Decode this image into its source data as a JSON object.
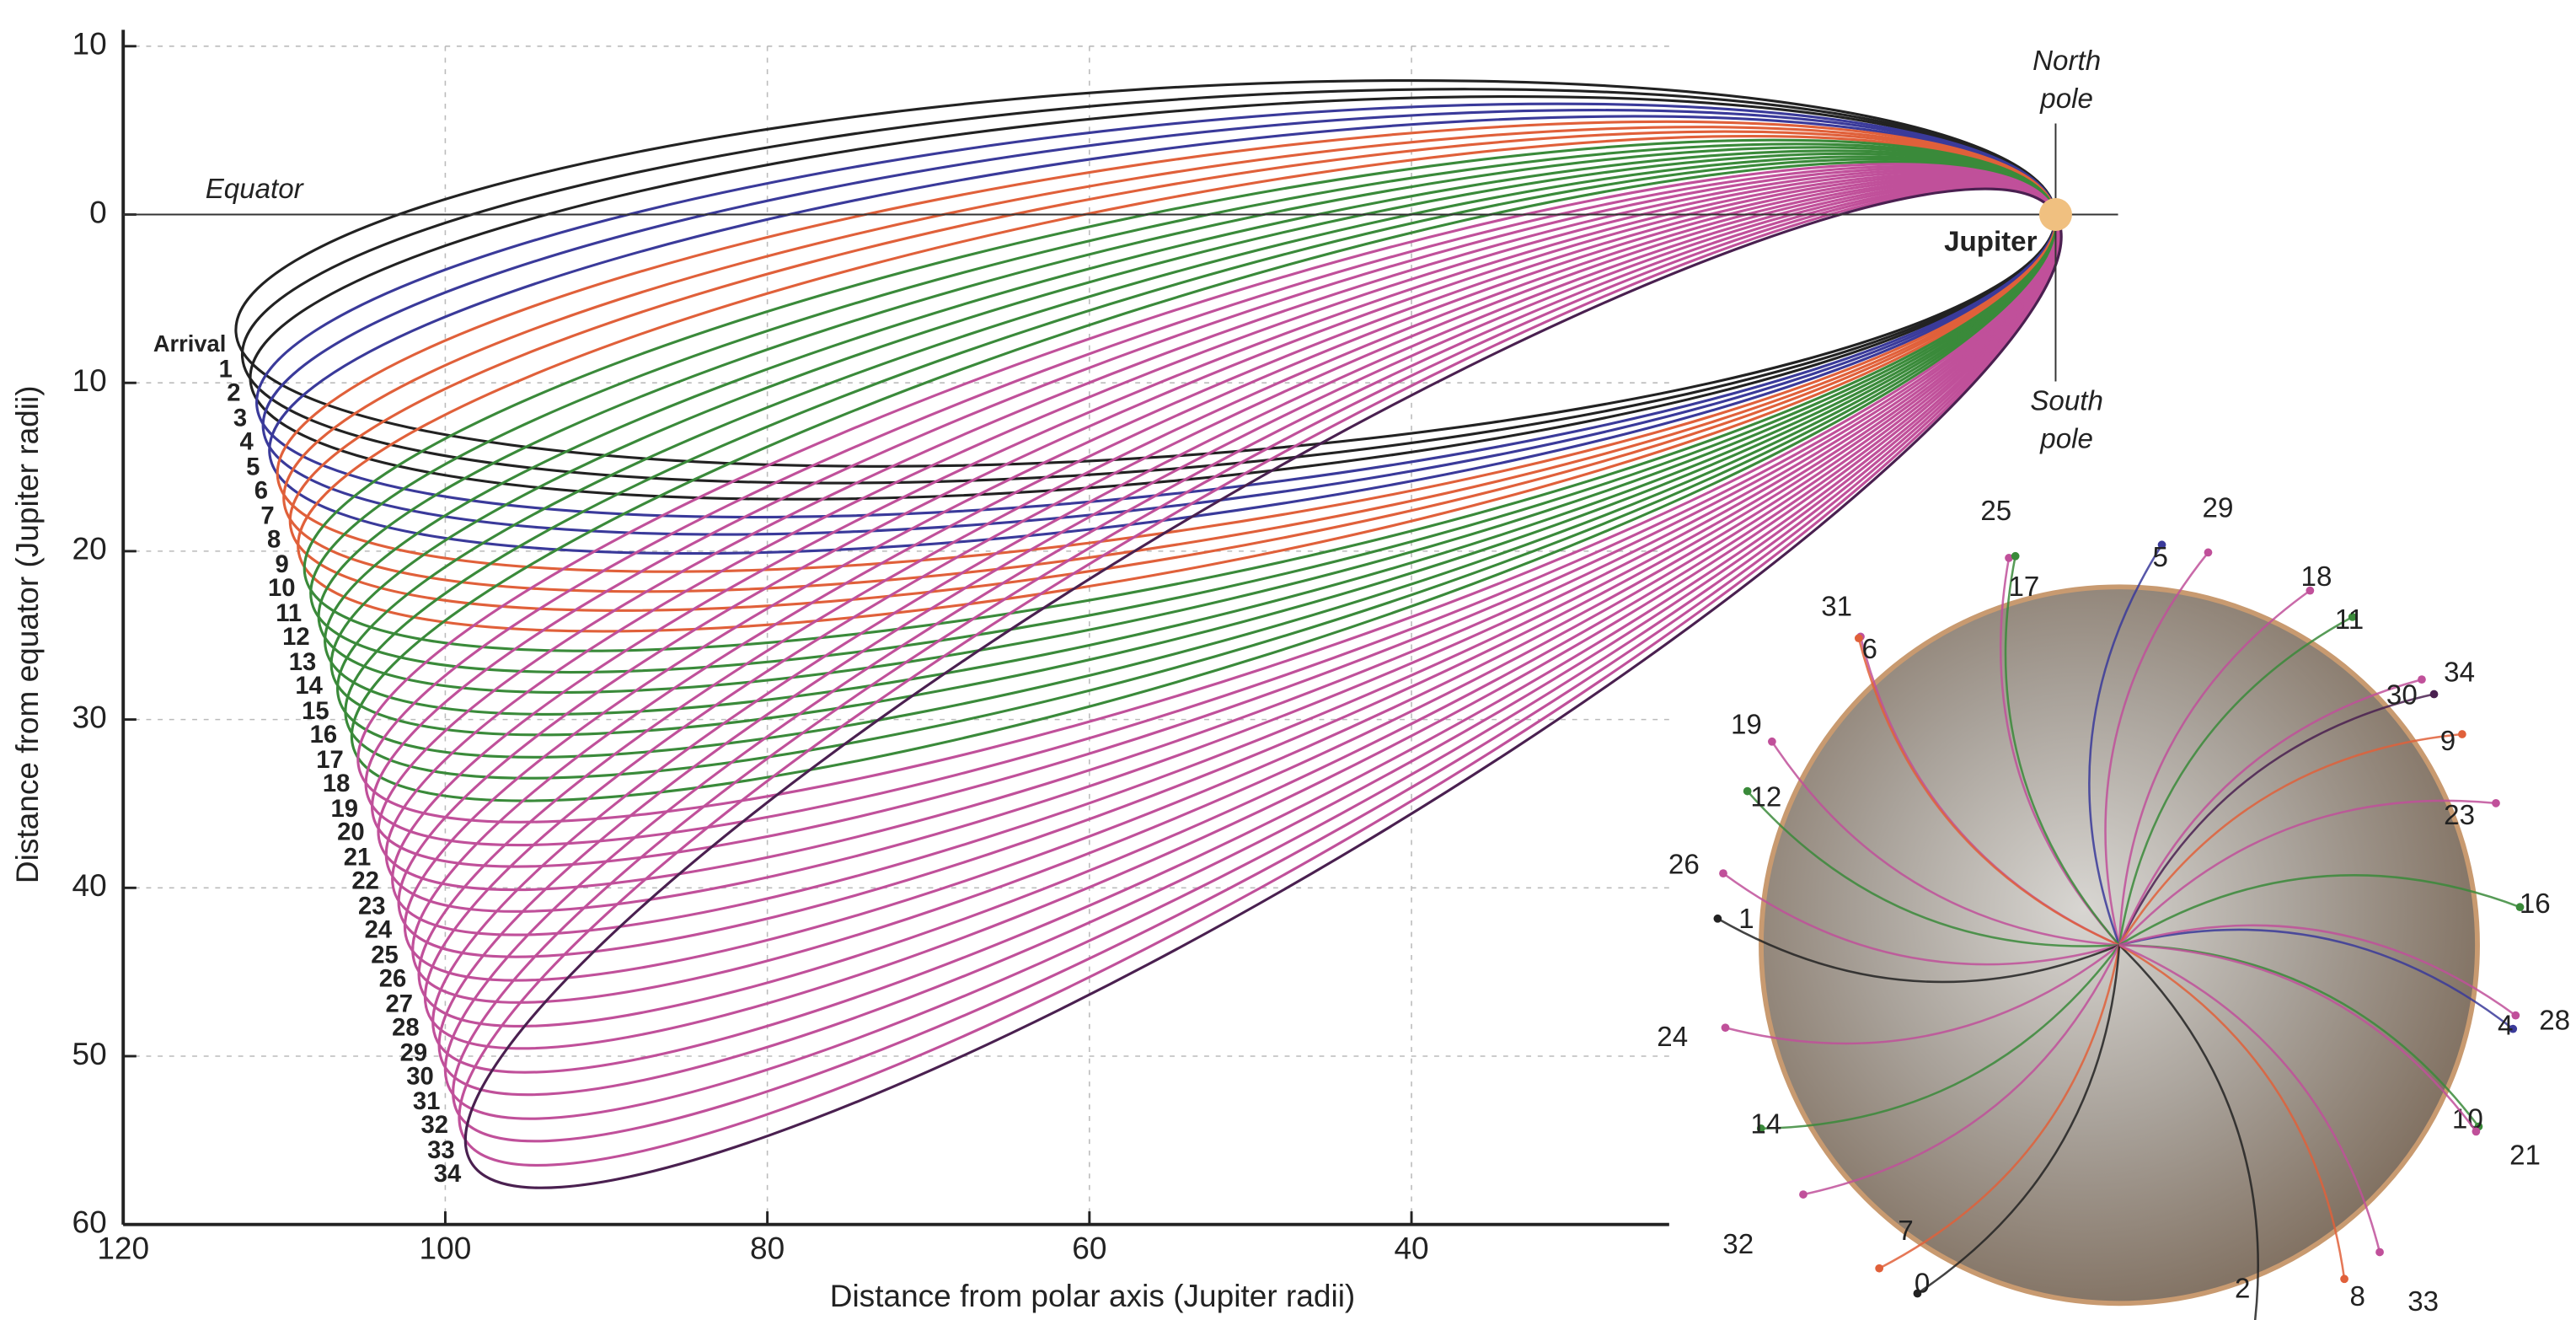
{
  "chart_data": {
    "type": "orbit",
    "title_x": "Distance from polar axis (Jupiter radii)",
    "title_y": "Distance from equator (Jupiter radii)",
    "annotations": {
      "equator": "Equator",
      "north": [
        "North",
        "pole"
      ],
      "south": [
        "South",
        "pole"
      ],
      "planet": "Jupiter"
    },
    "xlim": [
      120,
      24
    ],
    "ylim": [
      -10,
      60
    ],
    "xticks": [
      120,
      100,
      80,
      60,
      40
    ],
    "yticks": [
      {
        "value": -10,
        "label": "10"
      },
      0,
      10,
      20,
      30,
      40,
      50,
      60
    ],
    "grid": true,
    "orbit_labels": [
      "Arrival",
      "1",
      "2",
      "3",
      "4",
      "5",
      "6",
      "7",
      "8",
      "9",
      "10",
      "11",
      "12",
      "13",
      "14",
      "15",
      "16",
      "17",
      "18",
      "19",
      "20",
      "21",
      "22",
      "23",
      "24",
      "25",
      "26",
      "27",
      "28",
      "29",
      "30",
      "31",
      "32",
      "33",
      "34"
    ],
    "x": [
      113.0,
      112.6,
      112.1,
      111.7,
      111.3,
      110.9,
      110.4,
      110.0,
      109.6,
      109.1,
      108.7,
      108.3,
      107.8,
      107.4,
      107.0,
      106.6,
      106.1,
      105.7,
      105.3,
      104.8,
      104.4,
      104.0,
      103.5,
      103.1,
      102.7,
      102.3,
      101.8,
      101.4,
      101.0,
      100.5,
      100.1,
      99.7,
      99.2,
      98.8,
      98.4
    ],
    "values": [
      7.0,
      8.5,
      9.9,
      11.4,
      12.8,
      14.3,
      15.7,
      17.2,
      18.6,
      20.1,
      21.5,
      23.0,
      24.4,
      25.9,
      27.3,
      28.8,
      30.2,
      31.7,
      33.1,
      34.6,
      36.0,
      37.5,
      38.9,
      40.4,
      41.8,
      43.3,
      44.7,
      46.2,
      47.6,
      49.1,
      50.5,
      52.0,
      53.4,
      54.9,
      56.3
    ],
    "colors": [
      "#222222",
      "#222222",
      "#222222",
      "#3a3a9a",
      "#3a3a9a",
      "#3a3a9a",
      "#e0603a",
      "#e0603a",
      "#e0603a",
      "#e0603a",
      "#3a8a3a",
      "#3a8a3a",
      "#3a8a3a",
      "#3a8a3a",
      "#3a8a3a",
      "#3a8a3a",
      "#3a8a3a",
      "#3a8a3a",
      "#c0509a",
      "#c0509a",
      "#c0509a",
      "#c0509a",
      "#c0509a",
      "#c0509a",
      "#c0509a",
      "#c0509a",
      "#c0509a",
      "#c0509a",
      "#c0509a",
      "#c0509a",
      "#c0509a",
      "#c0509a",
      "#c0509a",
      "#c0509a",
      "#4a2050"
    ],
    "polar_view_labels": [
      "25",
      "29",
      "5",
      "18",
      "31",
      "17",
      "11",
      "6",
      "34",
      "30",
      "9",
      "19",
      "12",
      "23",
      "26",
      "16",
      "1",
      "4",
      "28",
      "24",
      "14",
      "10",
      "21",
      "32",
      "7",
      "0",
      "2",
      "8",
      "33"
    ]
  }
}
